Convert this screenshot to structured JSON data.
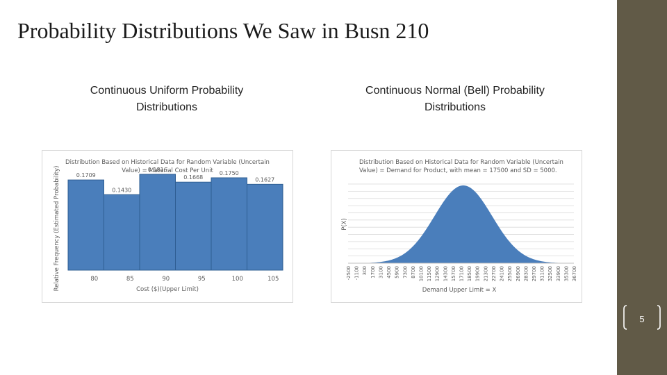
{
  "slide": {
    "title": "Probability Distributions We Saw in Busn 210",
    "page_number": "5"
  },
  "columns": [
    {
      "heading": "Continuous Uniform Probability Distributions"
    },
    {
      "heading": "Continuous Normal (Bell) Probability Distributions"
    }
  ],
  "colors": {
    "sidebar": "#615a47",
    "bar": "#4a7ebb",
    "bar_edge": "#2e5d92"
  },
  "chart_data": [
    {
      "type": "bar",
      "title": "Distribution Based on Historical Data for Random Variable (Uncertain Value) = Material Cost Per Unit",
      "xlabel": "Cost ($)(Upper Limit)",
      "ylabel": "Relative Frequency (Estimated Probability)",
      "categories": [
        "80",
        "85",
        "90",
        "95",
        "100",
        "105"
      ],
      "values": [
        0.1709,
        0.143,
        0.1816,
        0.1668,
        0.175,
        0.1627
      ],
      "data_labels": [
        "0.1709",
        "0.1430",
        "0.1816",
        "0.1668",
        "0.1750",
        "0.1627"
      ],
      "ylim": [
        0,
        0.2
      ],
      "grid": false
    },
    {
      "type": "area",
      "title": "Distribution Based on Historical Data for Random Variable (Uncertain Value) = Demand for Product, with mean = 17500 and SD = 5000.",
      "xlabel": "Demand Upper Limit = X",
      "ylabel": "P(X)",
      "mean": 17500,
      "sd": 5000,
      "x_tick_labels": [
        "-2500",
        "-1100",
        "300",
        "1700",
        "3100",
        "4500",
        "5900",
        "7300",
        "8700",
        "10100",
        "11500",
        "12900",
        "14300",
        "15700",
        "17100",
        "18500",
        "19900",
        "21300",
        "22700",
        "24100",
        "25500",
        "26900",
        "28300",
        "29700",
        "31100",
        "32500",
        "33900",
        "35300",
        "36700"
      ],
      "grid": true
    }
  ]
}
